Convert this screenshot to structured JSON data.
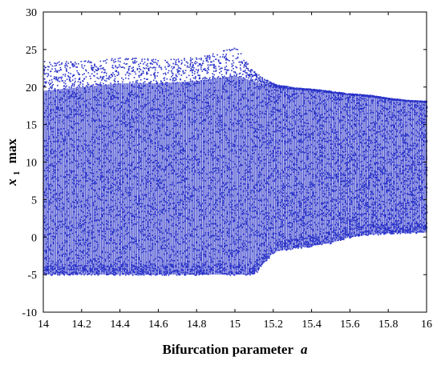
{
  "chart_data": {
    "type": "scatter",
    "title": "",
    "xlabel": "Bifurcation parameter",
    "xlabel_var": "a",
    "ylabel_var": "x",
    "ylabel_sub": "1",
    "ylabel_suffix": "max",
    "xlim": [
      14,
      16
    ],
    "ylim": [
      -10,
      30
    ],
    "xticks": [
      "14",
      "14.2",
      "14.4",
      "14.6",
      "14.8",
      "15",
      "15.2",
      "15.4",
      "15.6",
      "15.8",
      "16"
    ],
    "yticks": [
      "-10",
      "-5",
      "0",
      "5",
      "10",
      "15",
      "20",
      "25",
      "30"
    ],
    "grid": false,
    "legend": "none",
    "marker_color": "#2a33c8",
    "series": [
      {
        "points_description": "dense band of local maxima",
        "envelope": {
          "a": [
            14.0,
            14.2,
            14.4,
            14.6,
            14.8,
            15.0,
            15.1,
            15.2,
            15.3,
            15.4,
            15.5,
            15.6,
            15.7,
            15.8,
            15.9,
            16.0
          ],
          "upper": [
            19.5,
            20.0,
            20.5,
            20.5,
            20.8,
            21.5,
            20.8,
            20.0,
            19.8,
            19.6,
            19.3,
            19.0,
            18.8,
            18.4,
            18.2,
            18.0
          ],
          "upper_scatter": [
            23.5,
            23.5,
            24.0,
            23.8,
            24.0,
            25.5,
            22.0,
            20.5,
            20.0,
            19.8,
            19.5,
            19.2,
            19.0,
            18.6,
            18.3,
            18.2
          ],
          "lower": [
            -5.0,
            -5.0,
            -5.0,
            -5.0,
            -5.0,
            -5.0,
            -5.0,
            -2.0,
            -1.5,
            -1.2,
            -0.8,
            0.0,
            0.3,
            0.5,
            0.6,
            0.6
          ]
        }
      }
    ]
  }
}
